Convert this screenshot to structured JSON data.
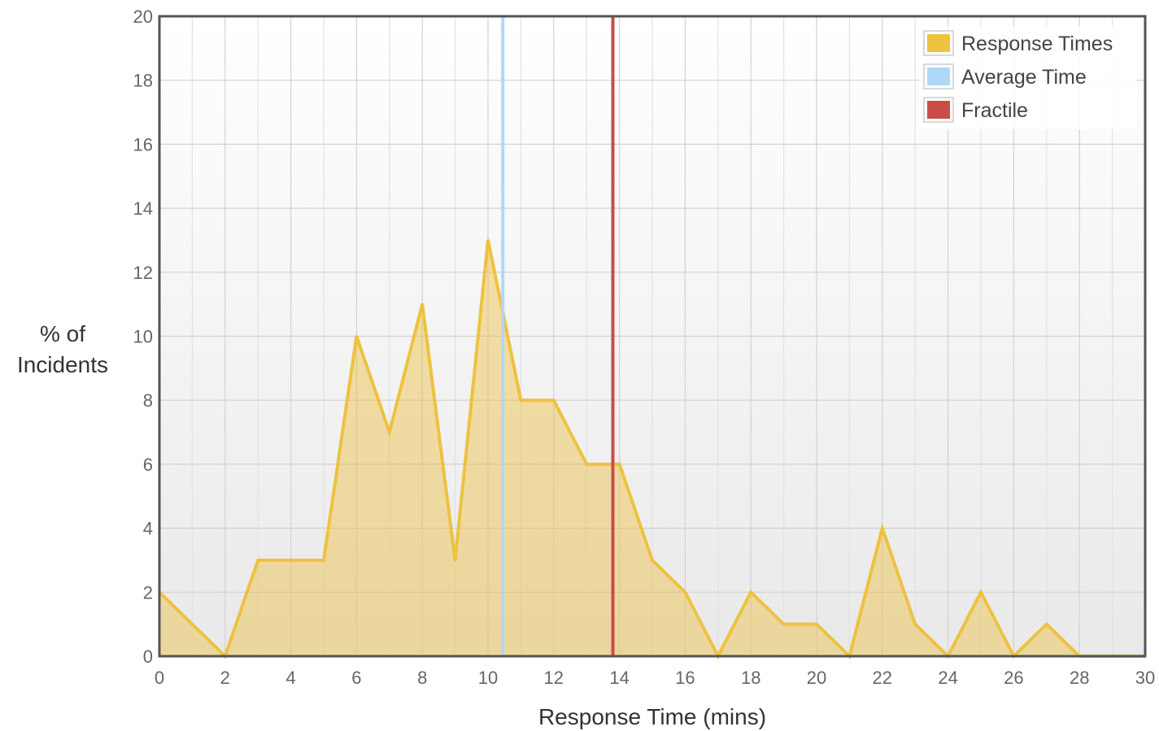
{
  "chart_data": {
    "type": "area",
    "title": "",
    "xlabel": "Response Time (mins)",
    "ylabel_lines": [
      "% of",
      "Incidents"
    ],
    "xlim": [
      0,
      30
    ],
    "ylim": [
      0,
      20
    ],
    "x_ticks": [
      0,
      2,
      4,
      6,
      8,
      10,
      12,
      14,
      16,
      18,
      20,
      22,
      24,
      26,
      28,
      30
    ],
    "y_ticks": [
      0,
      2,
      4,
      6,
      8,
      10,
      12,
      14,
      16,
      18,
      20
    ],
    "grid": true,
    "legend_position": "top-right",
    "series": [
      {
        "name": "Response Times",
        "color": "#EDC240",
        "x": [
          0,
          2,
          3,
          4,
          5,
          6,
          7,
          8,
          9,
          10,
          11,
          12,
          13,
          14,
          15,
          16,
          17,
          18,
          19,
          20,
          21,
          22,
          23,
          24,
          25,
          26,
          27,
          28,
          29,
          30
        ],
        "y": [
          2,
          0,
          3,
          3,
          3,
          10,
          7,
          11,
          3,
          13,
          8,
          8,
          6,
          6,
          3,
          2,
          0,
          2,
          1,
          1,
          0,
          4,
          1,
          0,
          2,
          0,
          1,
          0,
          0,
          0
        ]
      }
    ],
    "reference_lines": [
      {
        "name": "Average Time",
        "x": 10.45,
        "color": "#AFD8F8"
      },
      {
        "name": "Fractile",
        "x": 13.8,
        "color": "#CB4B4B"
      }
    ]
  }
}
